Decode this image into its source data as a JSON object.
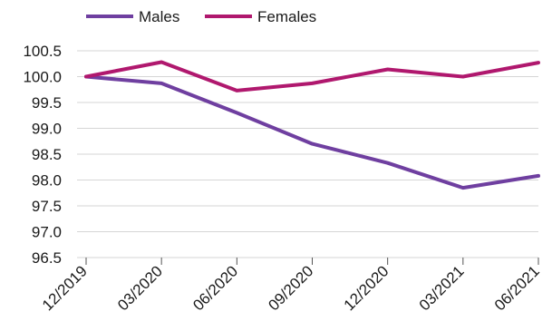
{
  "chart_data": {
    "type": "line",
    "title": "",
    "xlabel": "",
    "ylabel": "",
    "categories": [
      "12/2019",
      "03/2020",
      "06/2020",
      "09/2020",
      "12/2020",
      "03/2021",
      "06/2021"
    ],
    "ylim": [
      96.5,
      100.5
    ],
    "yticks": [
      "96.5",
      "97.0",
      "97.5",
      "98.0",
      "98.5",
      "99.0",
      "99.5",
      "100.0",
      "100.5"
    ],
    "grid": true,
    "legend_position": "top-left",
    "series": [
      {
        "name": "Males",
        "color": "#6f3fa0",
        "values": [
          100.0,
          99.87,
          99.3,
          98.7,
          98.33,
          97.85,
          98.08
        ]
      },
      {
        "name": "Females",
        "color": "#b0186e",
        "values": [
          100.0,
          100.28,
          99.73,
          99.87,
          100.14,
          100.0,
          100.27
        ]
      }
    ]
  }
}
